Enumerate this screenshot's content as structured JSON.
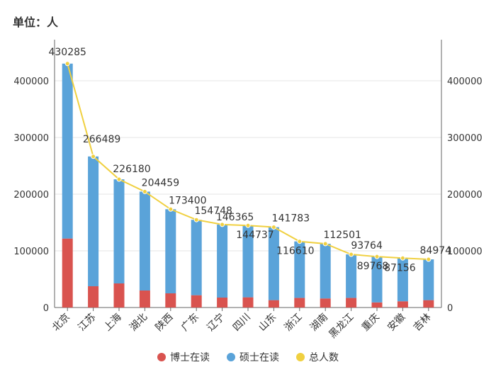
{
  "unit_label": "单位：人",
  "chart_data": {
    "type": "bar",
    "stacked": true,
    "categories": [
      "北京",
      "江苏",
      "上海",
      "湖北",
      "陕西",
      "广东",
      "辽宁",
      "四川",
      "山东",
      "浙江",
      "湖南",
      "黑龙江",
      "重庆",
      "安徽",
      "吉林"
    ],
    "series": [
      {
        "name": "博士在读",
        "type": "bar",
        "color": "#d9534f",
        "values": [
          121700,
          37500,
          42500,
          30000,
          25000,
          21700,
          17500,
          18000,
          13000,
          17000,
          16000,
          17000,
          9000,
          11000,
          13000
        ]
      },
      {
        "name": "硕士在读",
        "type": "bar",
        "color": "#5aa3d9",
        "values": [
          308585,
          228989,
          183680,
          174459,
          148400,
          133048,
          128865,
          126737,
          128783,
          99610,
          96501,
          76764,
          80768,
          76156,
          71974
        ]
      },
      {
        "name": "总人数",
        "type": "line",
        "color": "#f0d040",
        "values": [
          430285,
          266489,
          226180,
          204459,
          173400,
          154748,
          146365,
          144737,
          141783,
          116610,
          112501,
          93764,
          89768,
          87156,
          84974
        ]
      }
    ],
    "yticks": [
      0,
      100000,
      200000,
      300000,
      400000
    ],
    "ylim": [
      0,
      472500
    ],
    "grid": true,
    "legend": "bottom"
  }
}
